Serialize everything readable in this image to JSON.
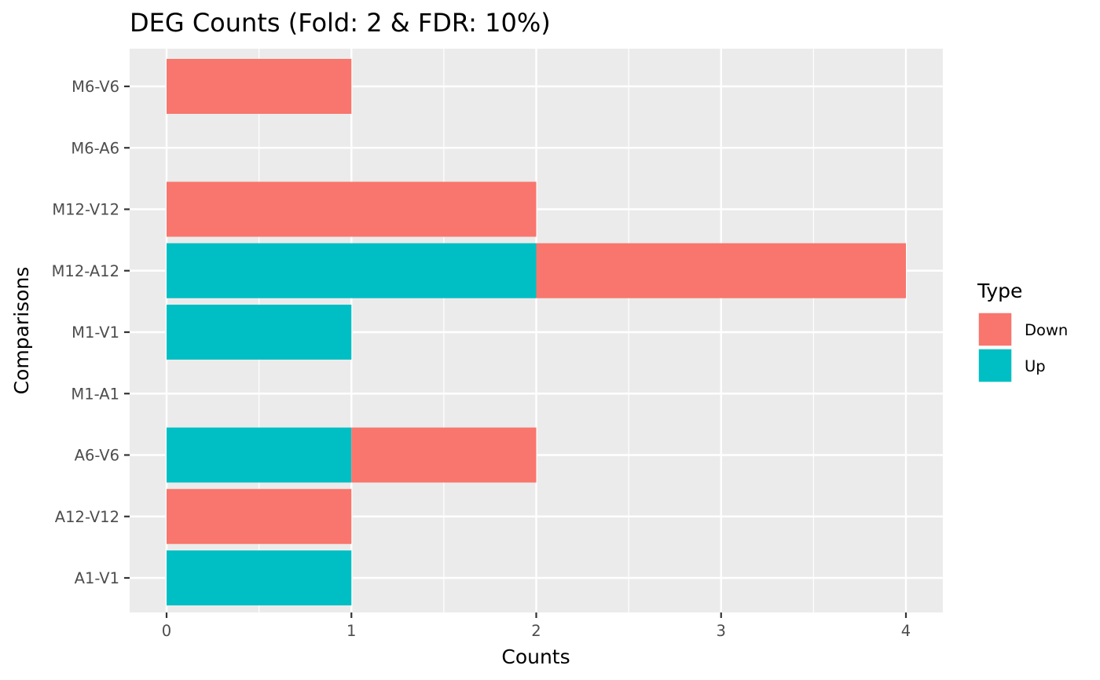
{
  "chart_data": {
    "type": "bar",
    "orientation": "horizontal",
    "stacked": true,
    "title": "DEG Counts (Fold: 2 & FDR: 10%)",
    "xlabel": "Counts",
    "ylabel": "Comparisons",
    "xlim": [
      0,
      4
    ],
    "x_ticks": [
      "0",
      "1",
      "2",
      "3",
      "4"
    ],
    "categories": [
      "A1-V1",
      "A12-V12",
      "A6-V6",
      "M1-A1",
      "M1-V1",
      "M12-A12",
      "M12-V12",
      "M6-A6",
      "M6-V6"
    ],
    "legend_title": "Type",
    "legend_position": "right",
    "grid": true,
    "series": [
      {
        "name": "Up",
        "color": "#00BFC4",
        "values": [
          1,
          0,
          1,
          0,
          1,
          2,
          0,
          0,
          0
        ]
      },
      {
        "name": "Down",
        "color": "#F8766D",
        "values": [
          0,
          1,
          1,
          0,
          0,
          2,
          2,
          0,
          1
        ]
      }
    ],
    "legend_order": [
      "Down",
      "Up"
    ]
  }
}
